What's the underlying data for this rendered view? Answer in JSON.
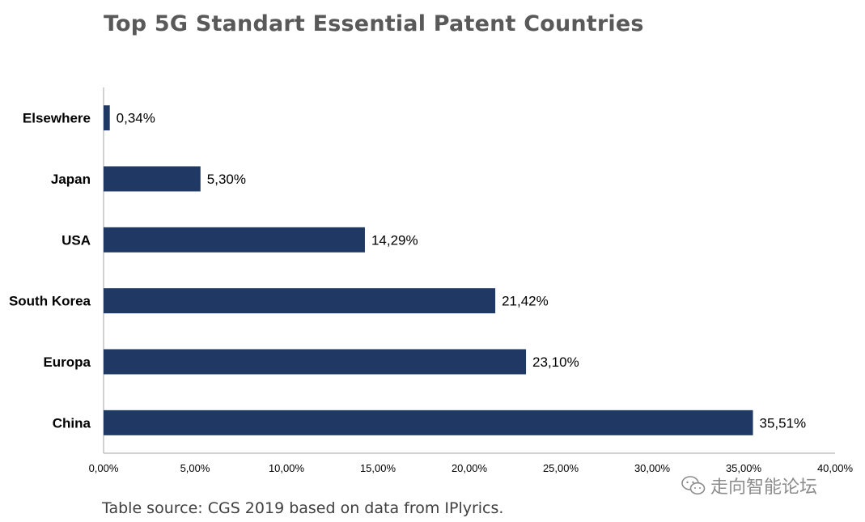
{
  "chart_data": {
    "type": "bar",
    "orientation": "horizontal",
    "title": "Top 5G Standart Essential Patent Countries",
    "xlabel": "",
    "ylabel": "",
    "categories": [
      "Elsewhere",
      "Japan",
      "USA",
      "South Korea",
      "Europa",
      "China"
    ],
    "values": [
      0.34,
      5.3,
      14.29,
      21.42,
      23.1,
      35.51
    ],
    "value_labels": [
      "0,34%",
      "5,30%",
      "14,29%",
      "21,42%",
      "23,10%",
      "35,51%"
    ],
    "xlim": [
      0,
      40
    ],
    "x_ticks": [
      0,
      5,
      10,
      15,
      20,
      25,
      30,
      35,
      40
    ],
    "x_tick_labels": [
      "0,00%",
      "5,00%",
      "10,00%",
      "15,00%",
      "20,00%",
      "25,00%",
      "30,00%",
      "35,00%",
      "40,00%"
    ],
    "grid": false,
    "legend": "none",
    "bar_color": "#1f3864"
  },
  "source_note": "Table source: CGS 2019 based on data from IPlyrics.",
  "watermark": {
    "text": "走向智能论坛",
    "icon": "wechat-icon"
  }
}
